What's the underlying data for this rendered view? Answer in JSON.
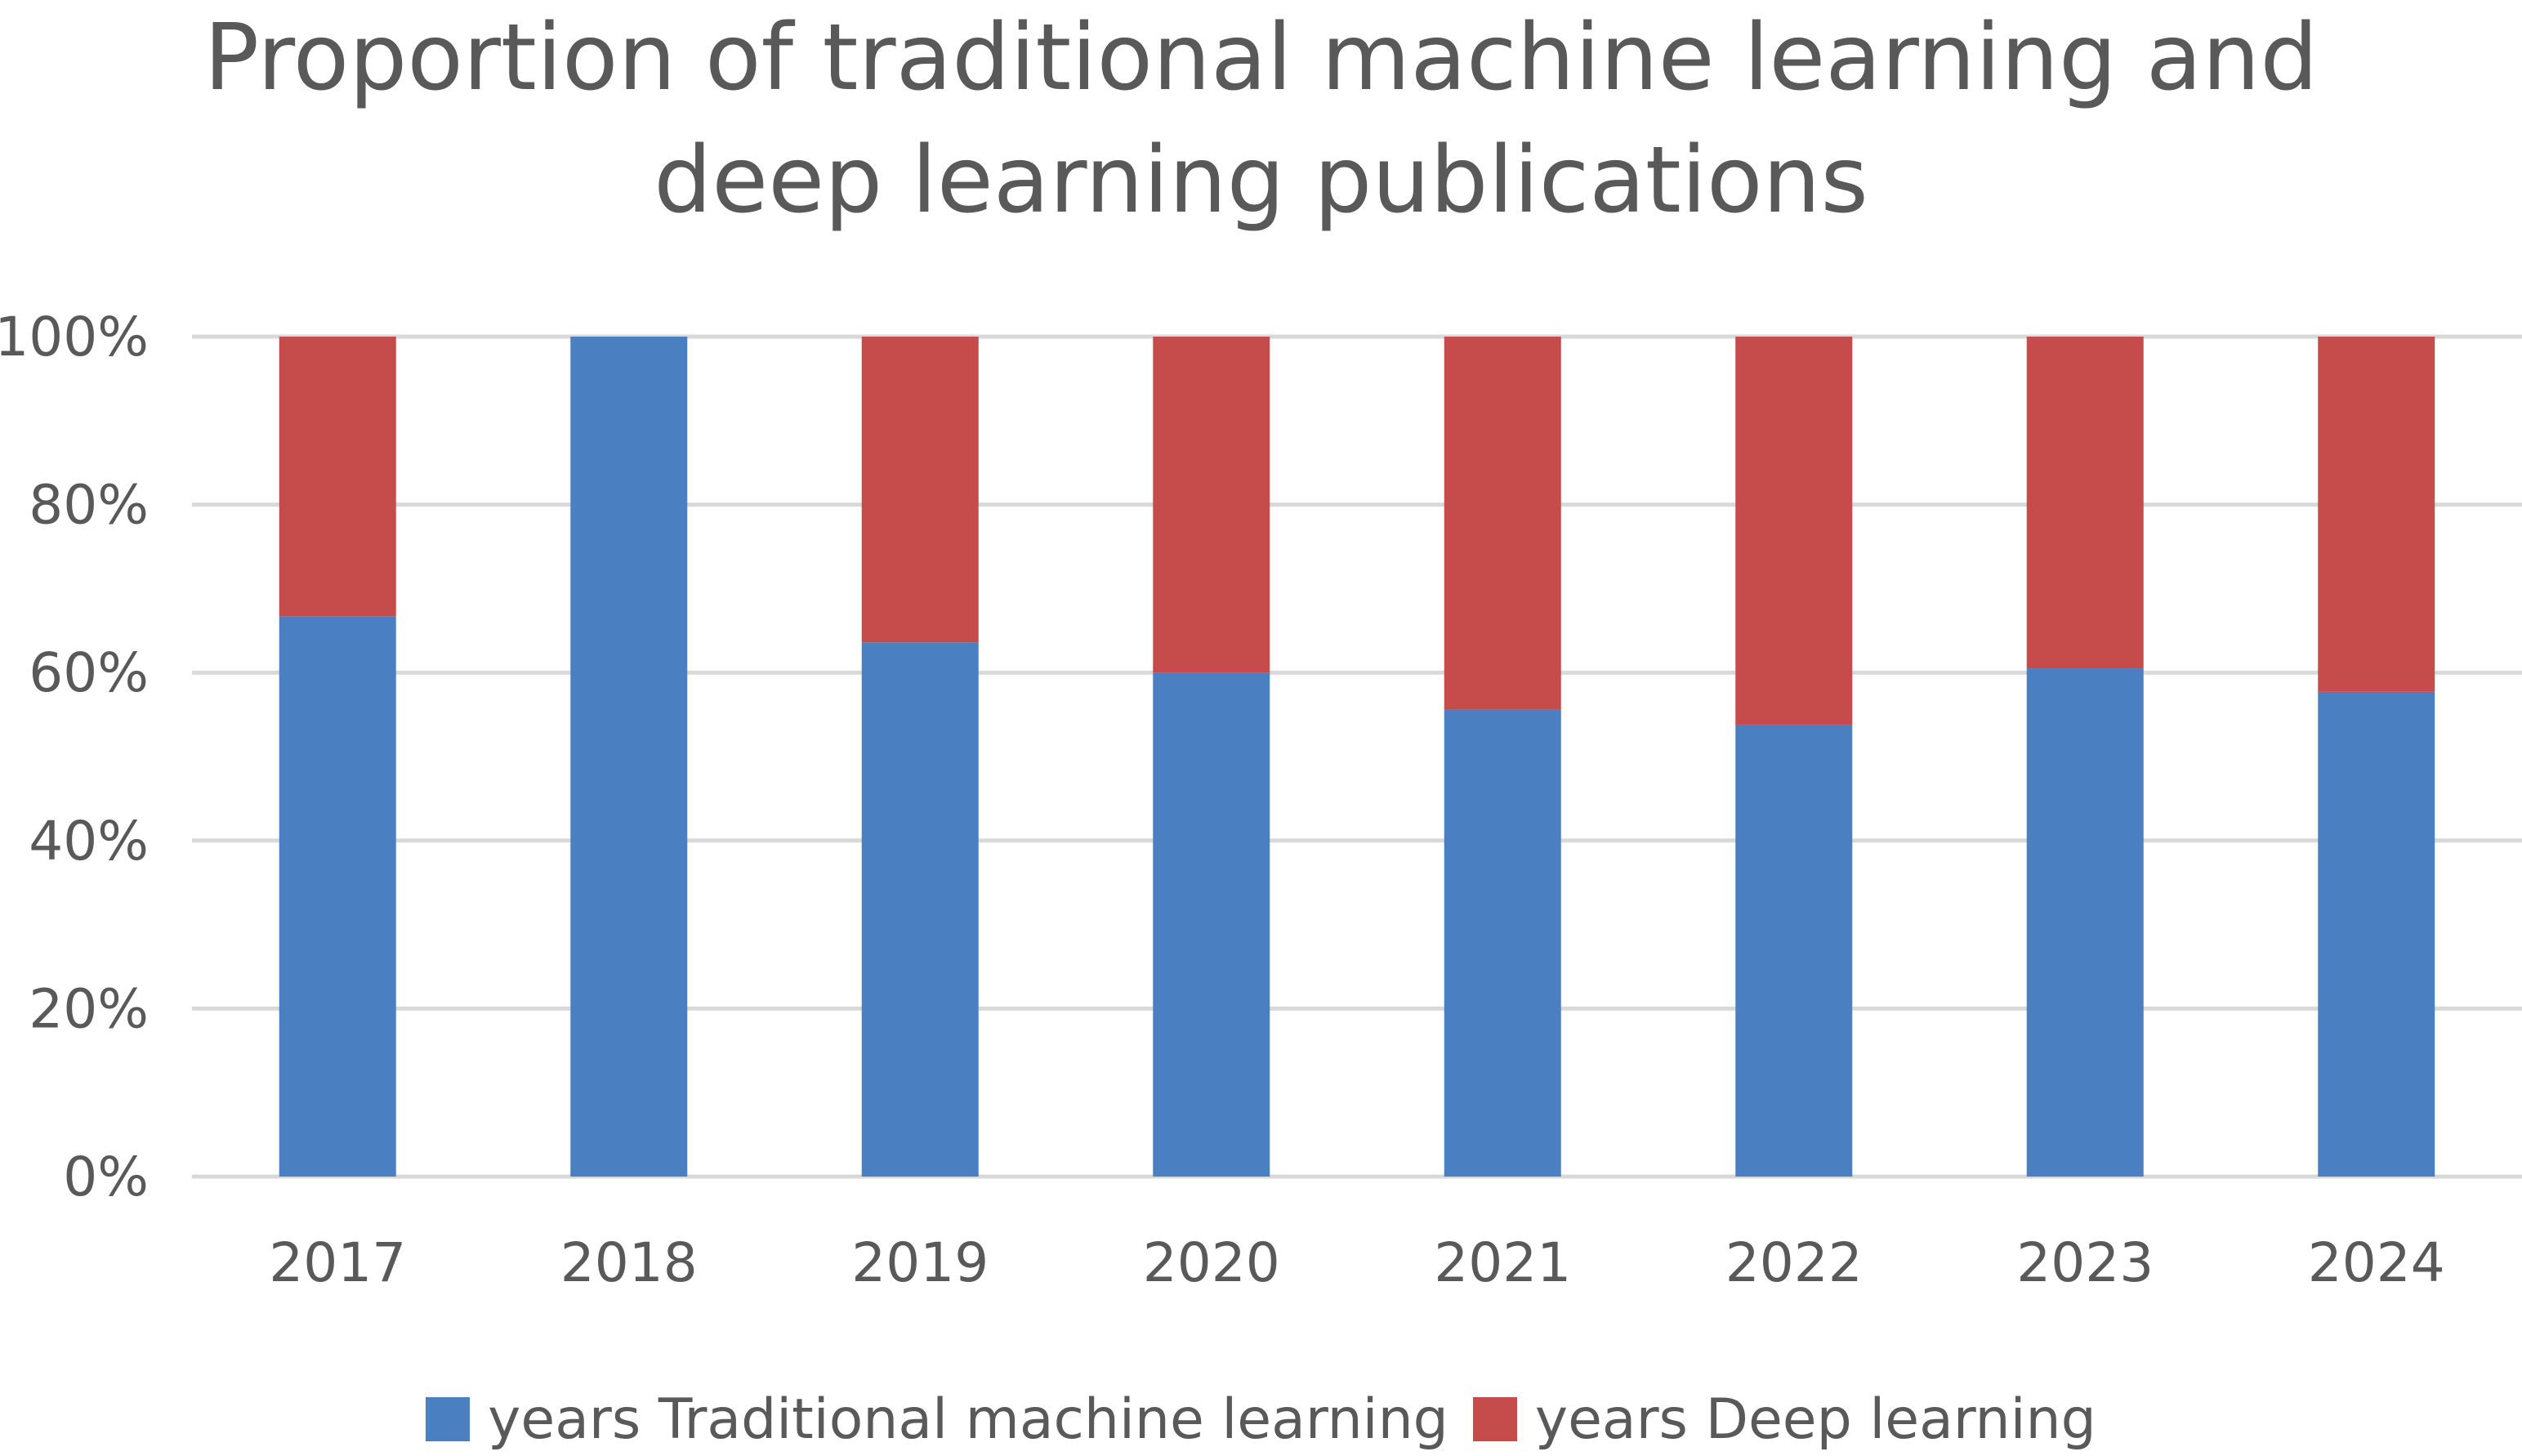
{
  "chart_data": {
    "type": "bar",
    "stacked": true,
    "percent_stacked": true,
    "title_lines": [
      "Proportion of traditional machine learning and",
      "deep learning publications"
    ],
    "categories": [
      "2017",
      "2018",
      "2019",
      "2020",
      "2021",
      "2022",
      "2023",
      "2024"
    ],
    "series": [
      {
        "name": "years Traditional machine learning",
        "color": "#4A80C2",
        "values": [
          66.7,
          100,
          63.6,
          60.0,
          55.6,
          53.8,
          60.5,
          57.7
        ]
      },
      {
        "name": "years Deep learning",
        "color": "#C64B4B",
        "values": [
          33.3,
          0,
          36.4,
          40.0,
          44.4,
          46.2,
          39.5,
          42.3
        ]
      }
    ],
    "y_ticks": [
      "0%",
      "20%",
      "40%",
      "60%",
      "80%",
      "100%"
    ],
    "ylim": [
      0,
      100
    ],
    "grid": true,
    "gridline_color": "#D9D9D9",
    "legend_position": "bottom"
  }
}
